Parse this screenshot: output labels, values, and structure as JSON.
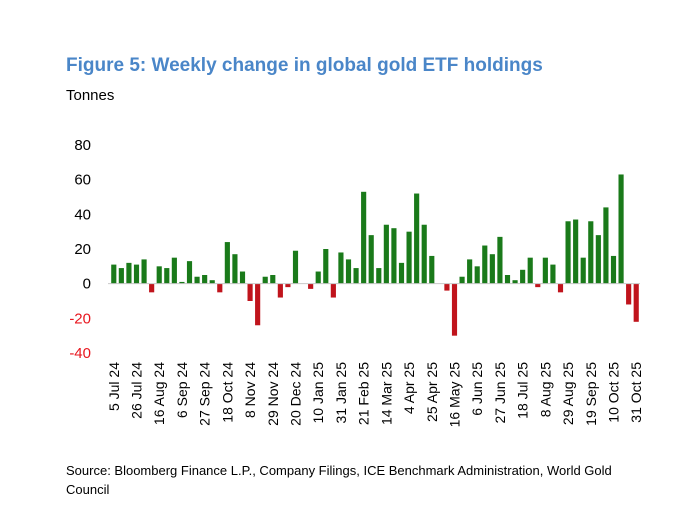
{
  "chart_data": {
    "type": "bar",
    "title": "Figure 5: Weekly change in global gold ETF holdings",
    "ylabel": "Tonnes",
    "source": "Source: Bloomberg Finance L.P., Company Filings, ICE Benchmark Administration, World Gold Council",
    "ylim": [
      -40,
      80
    ],
    "yticks": [
      80,
      60,
      40,
      20,
      0,
      -20,
      -40
    ],
    "grid": false,
    "legend": "none",
    "colors": {
      "positive": "#1a7a1a",
      "negative": "#c0141c",
      "title": "#4a86c8",
      "negative_tick": "#e8161e"
    },
    "categories": [
      "5 Jul 24",
      "12 Jul 24",
      "19 Jul 24",
      "26 Jul 24",
      "2 Aug 24",
      "9 Aug 24",
      "16 Aug 24",
      "23 Aug 24",
      "30 Aug 24",
      "6 Sep 24",
      "13 Sep 24",
      "20 Sep 24",
      "27 Sep 24",
      "4 Oct 24",
      "11 Oct 24",
      "18 Oct 24",
      "25 Oct 24",
      "1 Nov 24",
      "8 Nov 24",
      "15 Nov 24",
      "22 Nov 24",
      "29 Nov 24",
      "6 Dec 24",
      "13 Dec 24",
      "20 Dec 24",
      "27 Dec 24",
      "3 Jan 25",
      "10 Jan 25",
      "17 Jan 25",
      "24 Jan 25",
      "31 Jan 25",
      "7 Feb 25",
      "14 Feb 25",
      "21 Feb 25",
      "28 Feb 25",
      "7 Mar 25",
      "14 Mar 25",
      "21 Mar 25",
      "28 Mar 25",
      "4 Apr 25",
      "11 Apr 25",
      "18 Apr 25",
      "25 Apr 25",
      "2 May 25",
      "9 May 25",
      "16 May 25",
      "23 May 25",
      "30 May 25",
      "6 Jun 25",
      "13 Jun 25",
      "20 Jun 25",
      "27 Jun 25",
      "4 Jul 25",
      "11 Jul 25",
      "18 Jul 25",
      "25 Jul 25",
      "1 Aug 25",
      "8 Aug 25",
      "15 Aug 25",
      "22 Aug 25",
      "29 Aug 25",
      "5 Sep 25",
      "12 Sep 25",
      "19 Sep 25",
      "26 Sep 25",
      "3 Oct 25",
      "10 Oct 25",
      "17 Oct 25",
      "24 Oct 25",
      "31 Oct 25"
    ],
    "values": [
      11,
      9,
      12,
      11,
      14,
      -5,
      10,
      9,
      15,
      1,
      13,
      4,
      5,
      2,
      -5,
      24,
      17,
      7,
      -10,
      -24,
      4,
      5,
      -8,
      -2,
      19,
      0,
      -3,
      7,
      20,
      -8,
      18,
      14,
      9,
      53,
      28,
      9,
      34,
      32,
      12,
      30,
      52,
      34,
      16,
      0,
      -4,
      -30,
      4,
      14,
      10,
      22,
      17,
      27,
      5,
      2,
      8,
      15,
      -2,
      15,
      11,
      -5,
      36,
      37,
      15,
      36,
      28,
      44,
      16,
      63,
      -12,
      -22
    ],
    "xtick_labels": [
      "5 Jul 24",
      "26 Jul 24",
      "16 Aug 24",
      "6 Sep 24",
      "27 Sep 24",
      "18 Oct 24",
      "8 Nov 24",
      "29 Nov 24",
      "20 Dec 24",
      "10 Jan 25",
      "31 Jan 25",
      "21 Feb 25",
      "14 Mar 25",
      "4 Apr 25",
      "25 Apr 25",
      "16 May 25",
      "6 Jun 25",
      "27 Jun 25",
      "18 Jul 25",
      "8 Aug 25",
      "29 Aug 25",
      "19 Sep 25",
      "10 Oct 25",
      "31 Oct 25"
    ]
  }
}
